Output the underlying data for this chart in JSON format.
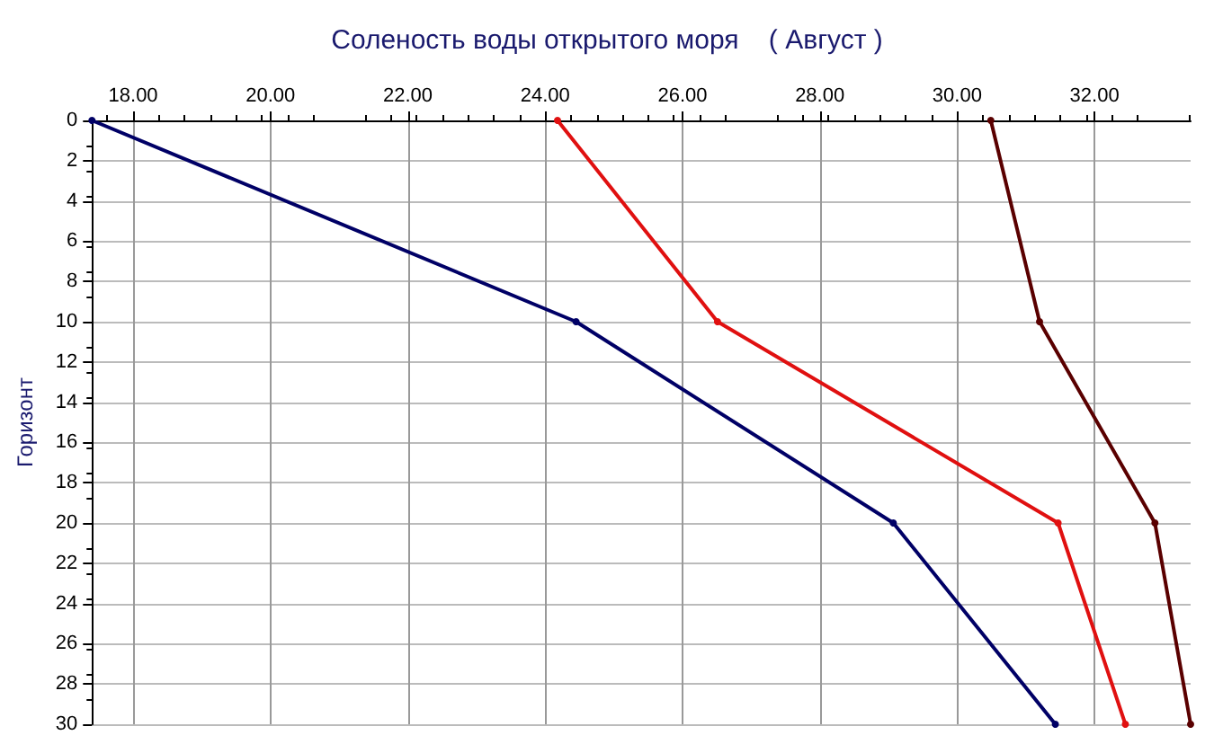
{
  "chart_data": {
    "type": "line",
    "title": "Соленость воды открытого моря    ( Август )",
    "ylabel": "Горизонт",
    "series": [
      {
        "color": "#000066",
        "x": [
          17.4,
          24.45,
          29.07,
          31.43
        ],
        "values": [
          0,
          10,
          20,
          30
        ]
      },
      {
        "color": "#e01010",
        "x": [
          24.18,
          26.51,
          31.47,
          32.45
        ],
        "values": [
          0,
          10,
          20,
          30
        ]
      },
      {
        "color": "#5a0000",
        "x": [
          30.49,
          31.2,
          32.88,
          33.4
        ],
        "values": [
          0,
          10,
          20,
          30
        ]
      }
    ],
    "xlim": [
      17.4,
      33.4
    ],
    "xticks": [
      {
        "value": 18,
        "label": "18.00"
      },
      {
        "value": 20,
        "label": "20.00"
      },
      {
        "value": 22,
        "label": "22.00"
      },
      {
        "value": 24,
        "label": "24.00"
      },
      {
        "value": 26,
        "label": "26.00"
      },
      {
        "value": 28,
        "label": "28.00"
      },
      {
        "value": 30,
        "label": "30.00"
      },
      {
        "value": 32,
        "label": "32.00"
      }
    ],
    "ylim": [
      30,
      0
    ],
    "yticks": [
      0,
      2,
      4,
      6,
      8,
      10,
      12,
      14,
      16,
      18,
      20,
      22,
      24,
      26,
      28,
      30
    ],
    "grid": true,
    "marker": "circle",
    "line_style": "solid"
  }
}
